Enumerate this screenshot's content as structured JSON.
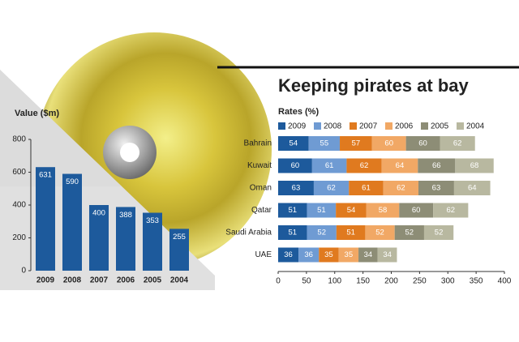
{
  "chart_data": [
    {
      "type": "bar",
      "title": "Value ($m)",
      "categories": [
        "2009",
        "2008",
        "2007",
        "2006",
        "2005",
        "2004"
      ],
      "values": [
        631,
        590,
        400,
        388,
        353,
        255
      ],
      "color": "#1d5a9c",
      "ylim": [
        0,
        800
      ],
      "yticks": [
        0,
        200,
        400,
        600,
        800
      ]
    },
    {
      "type": "stacked-barh",
      "title": "Keeping pirates at bay",
      "subtitle": "Rates (%)",
      "categories": [
        "Bahrain",
        "Kuwait",
        "Oman",
        "Qatar",
        "Saudi Arabia",
        "UAE"
      ],
      "series": [
        {
          "name": "2009",
          "color": "#1d5a9c",
          "values": [
            54,
            60,
            63,
            51,
            51,
            36
          ]
        },
        {
          "name": "2008",
          "color": "#6f9bd3",
          "values": [
            55,
            61,
            62,
            51,
            52,
            36
          ]
        },
        {
          "name": "2007",
          "color": "#e07a1f",
          "values": [
            57,
            62,
            61,
            54,
            51,
            35
          ]
        },
        {
          "name": "2006",
          "color": "#f1a865",
          "values": [
            60,
            64,
            62,
            58,
            52,
            35
          ]
        },
        {
          "name": "2005",
          "color": "#8d8d76",
          "values": [
            60,
            66,
            63,
            60,
            52,
            34
          ]
        },
        {
          "name": "2004",
          "color": "#b8b8a0",
          "values": [
            62,
            68,
            64,
            62,
            52,
            34
          ]
        }
      ],
      "xlim": [
        0,
        400
      ],
      "xticks": [
        0,
        50,
        100,
        150,
        200,
        250,
        300,
        350,
        400
      ]
    }
  ]
}
